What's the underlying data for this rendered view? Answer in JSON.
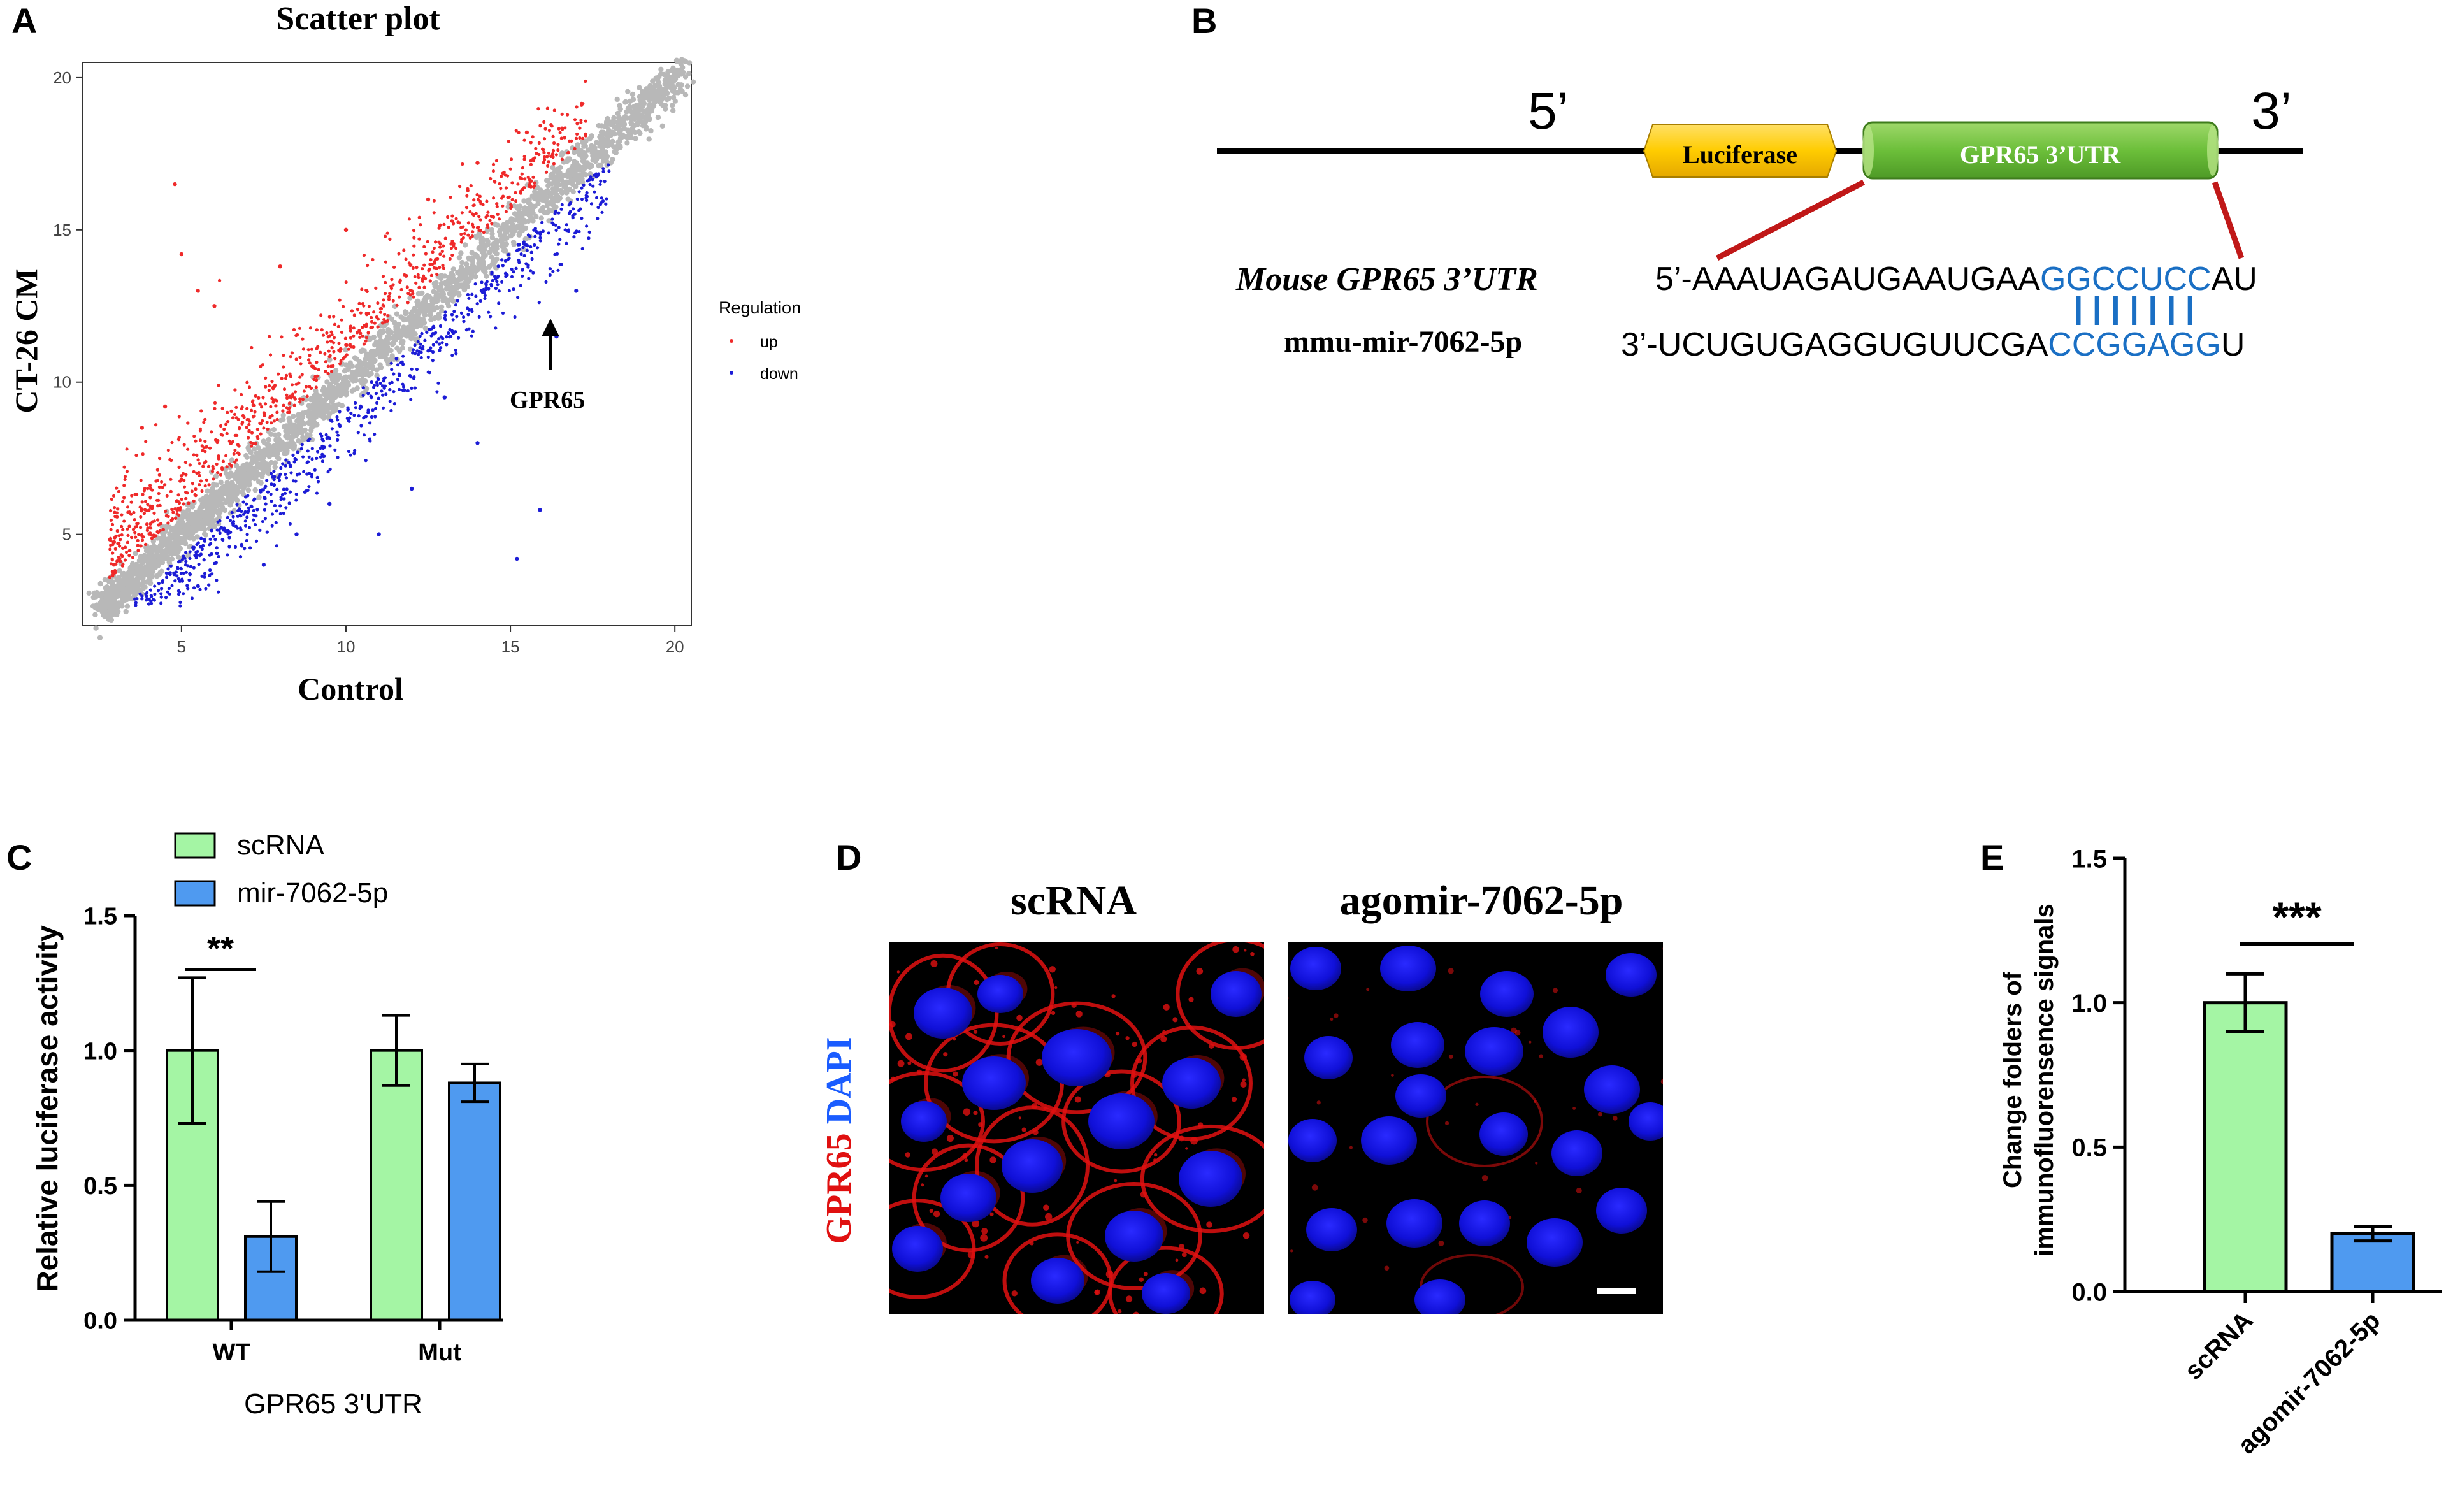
{
  "panels": {
    "a": "A",
    "b": "B",
    "c": "C",
    "d": "D",
    "e": "E"
  },
  "chart_data": [
    {
      "panel": "A",
      "type": "scatter",
      "title": "Scatter plot",
      "xlabel": "Control",
      "ylabel": "CT-26 CM",
      "xlim": [
        2,
        20.5
      ],
      "ylim": [
        2,
        20.5
      ],
      "xticks": [
        "5",
        "10",
        "15",
        "20"
      ],
      "yticks": [
        "5",
        "10",
        "15",
        "20"
      ],
      "grid": false,
      "legend": {
        "title": "Regulation",
        "placement": "right",
        "entries": [
          {
            "name": "up",
            "color": "#ef2a2a"
          },
          {
            "name": "down",
            "color": "#1c1cd6"
          }
        ]
      },
      "series": [
        {
          "name": "up",
          "color": "#ef2a2a",
          "x": [
            4.8,
            5.0,
            5.5,
            3.8,
            4.5,
            6.0,
            8.0,
            10.0,
            12.5,
            14.0,
            15.5,
            5.0,
            6.5,
            9.0
          ],
          "y": [
            16.5,
            14.2,
            13.0,
            8.5,
            9.2,
            12.5,
            13.8,
            15.0,
            16.0,
            17.2,
            18.2,
            6.8,
            8.0,
            10.5
          ]
        },
        {
          "name": "down",
          "color": "#1c1cd6",
          "x": [
            16.4,
            15.2,
            15.9,
            12.0,
            9.5,
            7.5,
            11.0,
            14.0,
            5.5,
            17.0,
            13.0,
            8.5
          ],
          "y": [
            11.5,
            4.2,
            5.8,
            6.5,
            6.0,
            4.0,
            5.0,
            8.0,
            3.3,
            13.0,
            9.5,
            5.0
          ]
        },
        {
          "name": "",
          "color": "#b8b8b8",
          "x": [],
          "y": []
        }
      ],
      "annotation": {
        "label": "GPR65",
        "x": 16.4,
        "y": 11.3
      }
    },
    {
      "panel": "C",
      "type": "bar",
      "xlabel": "GPR65 3'UTR",
      "ylabel": "Relative luciferase activity",
      "ylim": [
        0,
        1.5
      ],
      "yticks": [
        "0.0",
        "0.5",
        "1.0",
        "1.5"
      ],
      "categories": [
        "WT",
        "Mut"
      ],
      "series": [
        {
          "name": "scRNA",
          "color": "#a4f5a4",
          "values": [
            1.0,
            1.0
          ],
          "errors": [
            0.27,
            0.13
          ]
        },
        {
          "name": "mir-7062-5p",
          "color": "#4f9af0",
          "values": [
            0.31,
            0.88
          ],
          "errors": [
            0.13,
            0.07
          ]
        }
      ],
      "significance": [
        {
          "label": "**",
          "category": "WT"
        }
      ]
    },
    {
      "panel": "E",
      "type": "bar",
      "ylabel_line1": "Change folders of",
      "ylabel_line2": "immunofluorensence signals",
      "ylim": [
        0,
        1.5
      ],
      "yticks": [
        "0.0",
        "0.5",
        "1.0",
        "1.5"
      ],
      "categories": [
        "scRNA",
        "agomir-7062-5p"
      ],
      "values": [
        1.0,
        0.2
      ],
      "errors": [
        0.1,
        0.025
      ],
      "colors": [
        "#a4f5a4",
        "#4f9af0"
      ],
      "significance": [
        {
          "label": "***"
        }
      ]
    }
  ],
  "diagram_b": {
    "five_prime": "5’",
    "three_prime": "3’",
    "luciferase": "Luciferase",
    "utr_box": "GPR65 3’UTR",
    "mouse_label": "Mouse GPR65 3’UTR",
    "mir_label": "mmu-mir-7062-5p",
    "seq_top_prefix": "5’-AAAUAGAUGAAUGAA",
    "seq_top_seed": "GGCCUCC",
    "seq_top_suffix": "AU",
    "seq_bottom_prefix": "3’-UCUGUGAGGUGUUCGA",
    "seq_bottom_seed": "CCGGAGG",
    "seq_bottom_suffix": "U",
    "seed_color": "#1a6fc4",
    "pairs": 7
  },
  "panel_d": {
    "left_title": "scRNA",
    "right_title": "agomir-7062-5p",
    "stain_red": "GPR65",
    "stain_blue": "DAPI"
  },
  "colors": {
    "red": "#ef2a2a",
    "blue": "#1c1cd6",
    "grey": "#b8b8b8",
    "green_bar": "#a4f5a4",
    "blue_bar": "#4f9af0",
    "dapi": "#1414ff",
    "gpr65": "#e01010",
    "leader_line": "#c01818"
  }
}
